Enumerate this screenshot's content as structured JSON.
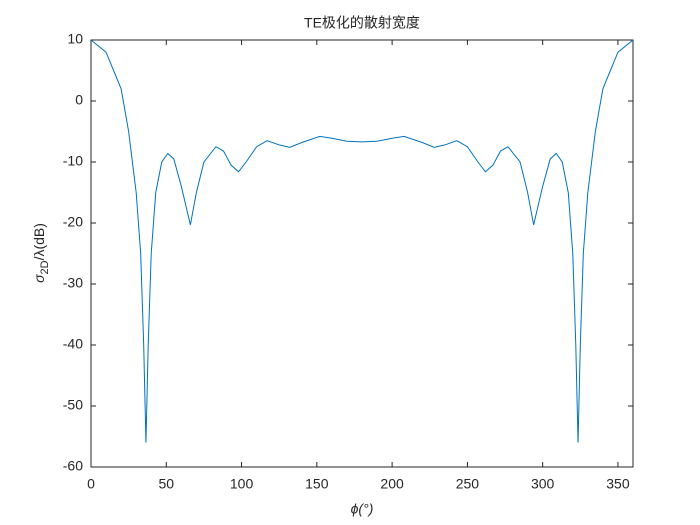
{
  "chart_data": {
    "type": "line",
    "title": "TE极化的散射宽度",
    "x_label": "ϕ(°)",
    "y_label": {
      "symbol": "σ",
      "subscript": "2D",
      "rest": "/λ(dB)"
    },
    "x": [
      0,
      10,
      20,
      25,
      30,
      33,
      35,
      36.5,
      38,
      40,
      43,
      47,
      51,
      55,
      60,
      66,
      70,
      75,
      83,
      88,
      93,
      98,
      103,
      110,
      117,
      125,
      132,
      140,
      152,
      160,
      170,
      180,
      190,
      200,
      208,
      220,
      228,
      235,
      243,
      250,
      257,
      262,
      267,
      272,
      277,
      285,
      290,
      294,
      300,
      305,
      309,
      313,
      317,
      320,
      322,
      323.5,
      325,
      327,
      330,
      335,
      340,
      350,
      360
    ],
    "series": [
      {
        "color": "#0072bd",
        "values": [
          10,
          8,
          2,
          -5,
          -15,
          -25,
          -40,
          -56,
          -40,
          -25,
          -15,
          -10,
          -8.6,
          -9.5,
          -14,
          -20.3,
          -15,
          -10,
          -7.5,
          -8.2,
          -10.5,
          -11.6,
          -10,
          -7.5,
          -6.5,
          -7.2,
          -7.6,
          -6.8,
          -5.8,
          -6.1,
          -6.6,
          -6.7,
          -6.6,
          -6.1,
          -5.8,
          -6.8,
          -7.6,
          -7.2,
          -6.5,
          -7.5,
          -10,
          -11.6,
          -10.5,
          -8.2,
          -7.5,
          -10,
          -15,
          -20.3,
          -14,
          -9.5,
          -8.6,
          -10,
          -15,
          -25,
          -40,
          -56,
          -40,
          -25,
          -15,
          -5,
          2,
          8,
          10
        ]
      }
    ],
    "xlim": [
      0,
      360
    ],
    "xticks": [
      0,
      50,
      100,
      150,
      200,
      250,
      300,
      350
    ],
    "ylim": [
      -60,
      10
    ],
    "yticks": [
      -60,
      -50,
      -40,
      -30,
      -20,
      -10,
      0,
      10
    ],
    "grid": false
  }
}
